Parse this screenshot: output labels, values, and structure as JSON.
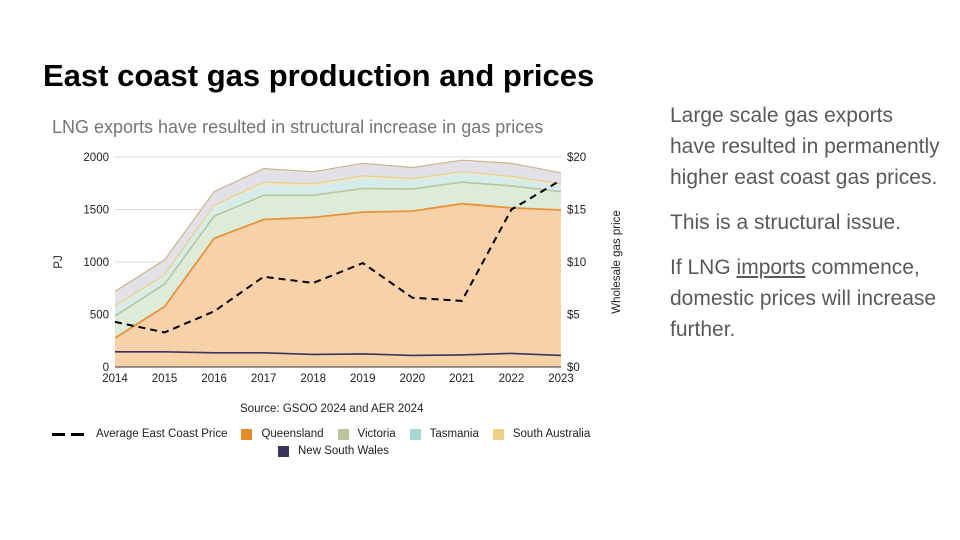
{
  "slide": {
    "title": "East coast gas production and prices",
    "body": [
      {
        "text": "Large scale gas exports have resulted in permanently higher east coast gas prices."
      },
      {
        "text": "This is a structural issue."
      },
      {
        "pre": "If LNG ",
        "link": "imports",
        "post": " commence, domestic prices will increase further."
      }
    ]
  },
  "chart_data": {
    "type": "area",
    "title": "",
    "subtitle": "LNG exports have resulted in structural increase in gas prices",
    "source": "Source: GSOO 2024 and AER 2024",
    "x": [
      2014,
      2015,
      2016,
      2017,
      2018,
      2019,
      2020,
      2021,
      2022,
      2023
    ],
    "ylabel": "PJ",
    "y2label": "Wholesale gas price",
    "ylim": [
      0,
      2000
    ],
    "y2lim": [
      0,
      20
    ],
    "yticks": [
      "0",
      "500",
      "1000",
      "1500",
      "2000"
    ],
    "y2ticks": [
      "$0",
      "$5",
      "$10",
      "$15",
      "$20"
    ],
    "grid": true,
    "stacked": true,
    "series": [
      {
        "name": "New South Wales",
        "color": "#3c325e",
        "values": [
          5,
          5,
          5,
          5,
          5,
          5,
          5,
          5,
          5,
          5
        ]
      },
      {
        "name": "Queensland",
        "color": "#f7d1a8",
        "values": [
          270,
          570,
          1220,
          1400,
          1420,
          1470,
          1480,
          1550,
          1510,
          1490
        ]
      },
      {
        "name": "Victoria",
        "color": "#ddecd8",
        "values": [
          210,
          215,
          210,
          230,
          210,
          225,
          210,
          205,
          210,
          175
        ]
      },
      {
        "name": "Tasmania",
        "color": "#d5ece9",
        "values": [
          80,
          75,
          90,
          100,
          90,
          100,
          85,
          85,
          75,
          60
        ]
      },
      {
        "name": "South Australia",
        "color": "#f3e7c1",
        "values": [
          15,
          15,
          15,
          25,
          20,
          20,
          15,
          15,
          15,
          15
        ]
      },
      {
        "name": "New South Wales",
        "color": "#e2e1e8",
        "values": [
          140,
          140,
          130,
          130,
          115,
          120,
          105,
          110,
          125,
          105
        ]
      }
    ],
    "line_series": {
      "name": "Average East Coast Price",
      "axis": "right",
      "values": [
        4.3,
        3.3,
        5.3,
        8.6,
        8.0,
        9.9,
        6.6,
        6.3,
        15.0,
        17.8
      ]
    },
    "legend": {
      "placement": "bottom",
      "items": [
        {
          "label": "Average East Coast Price",
          "kind": "dashed-line",
          "color": "#000000"
        },
        {
          "label": "Queensland",
          "kind": "swatch",
          "color": "#e88a26"
        },
        {
          "label": "Victoria",
          "kind": "swatch",
          "color": "#b9c59a"
        },
        {
          "label": "Tasmania",
          "kind": "swatch",
          "color": "#a5d9d2"
        },
        {
          "label": "South Australia",
          "kind": "swatch",
          "color": "#efd27f"
        },
        {
          "label": "New South Wales",
          "kind": "swatch",
          "color": "#3c325e"
        }
      ]
    }
  }
}
